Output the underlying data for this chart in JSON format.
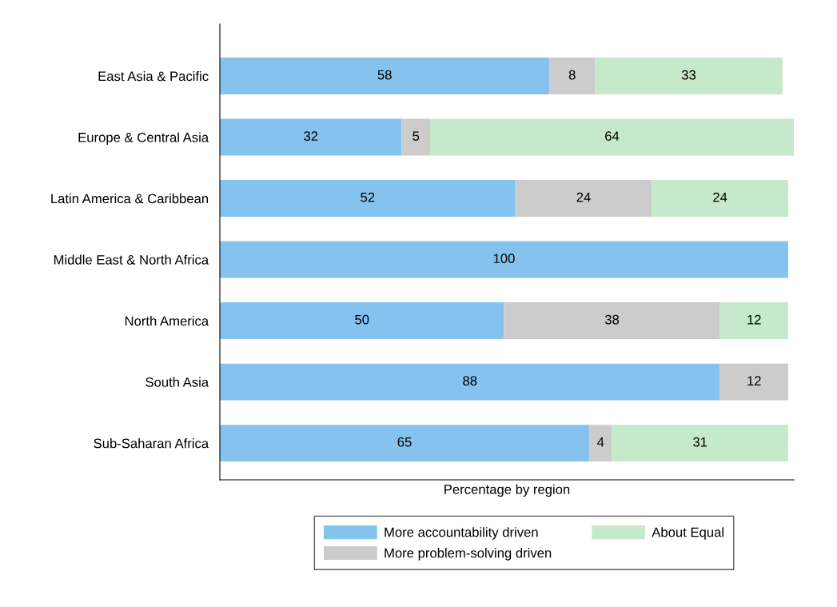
{
  "chart_data": {
    "type": "bar",
    "orientation": "horizontal",
    "stacked": true,
    "xlabel": "Percentage by region",
    "categories": [
      "East Asia & Pacific",
      "Europe & Central Asia",
      "Latin America & Caribbean",
      "Middle East & North Africa",
      "North America",
      "South Asia",
      "Sub-Saharan Africa"
    ],
    "series": [
      {
        "name": "More accountability driven",
        "color": "#85c3ee",
        "values": [
          58,
          32,
          52,
          100,
          50,
          88,
          65
        ]
      },
      {
        "name": "More problem-solving driven",
        "color": "#cccccc",
        "values": [
          8,
          5,
          24,
          null,
          38,
          12,
          4
        ]
      },
      {
        "name": "About Equal",
        "color": "#c6e9cb",
        "values": [
          33,
          64,
          24,
          null,
          12,
          null,
          31
        ]
      }
    ],
    "data_labels": true,
    "legend": "bottom",
    "grid": false,
    "tick_labels": "y"
  }
}
